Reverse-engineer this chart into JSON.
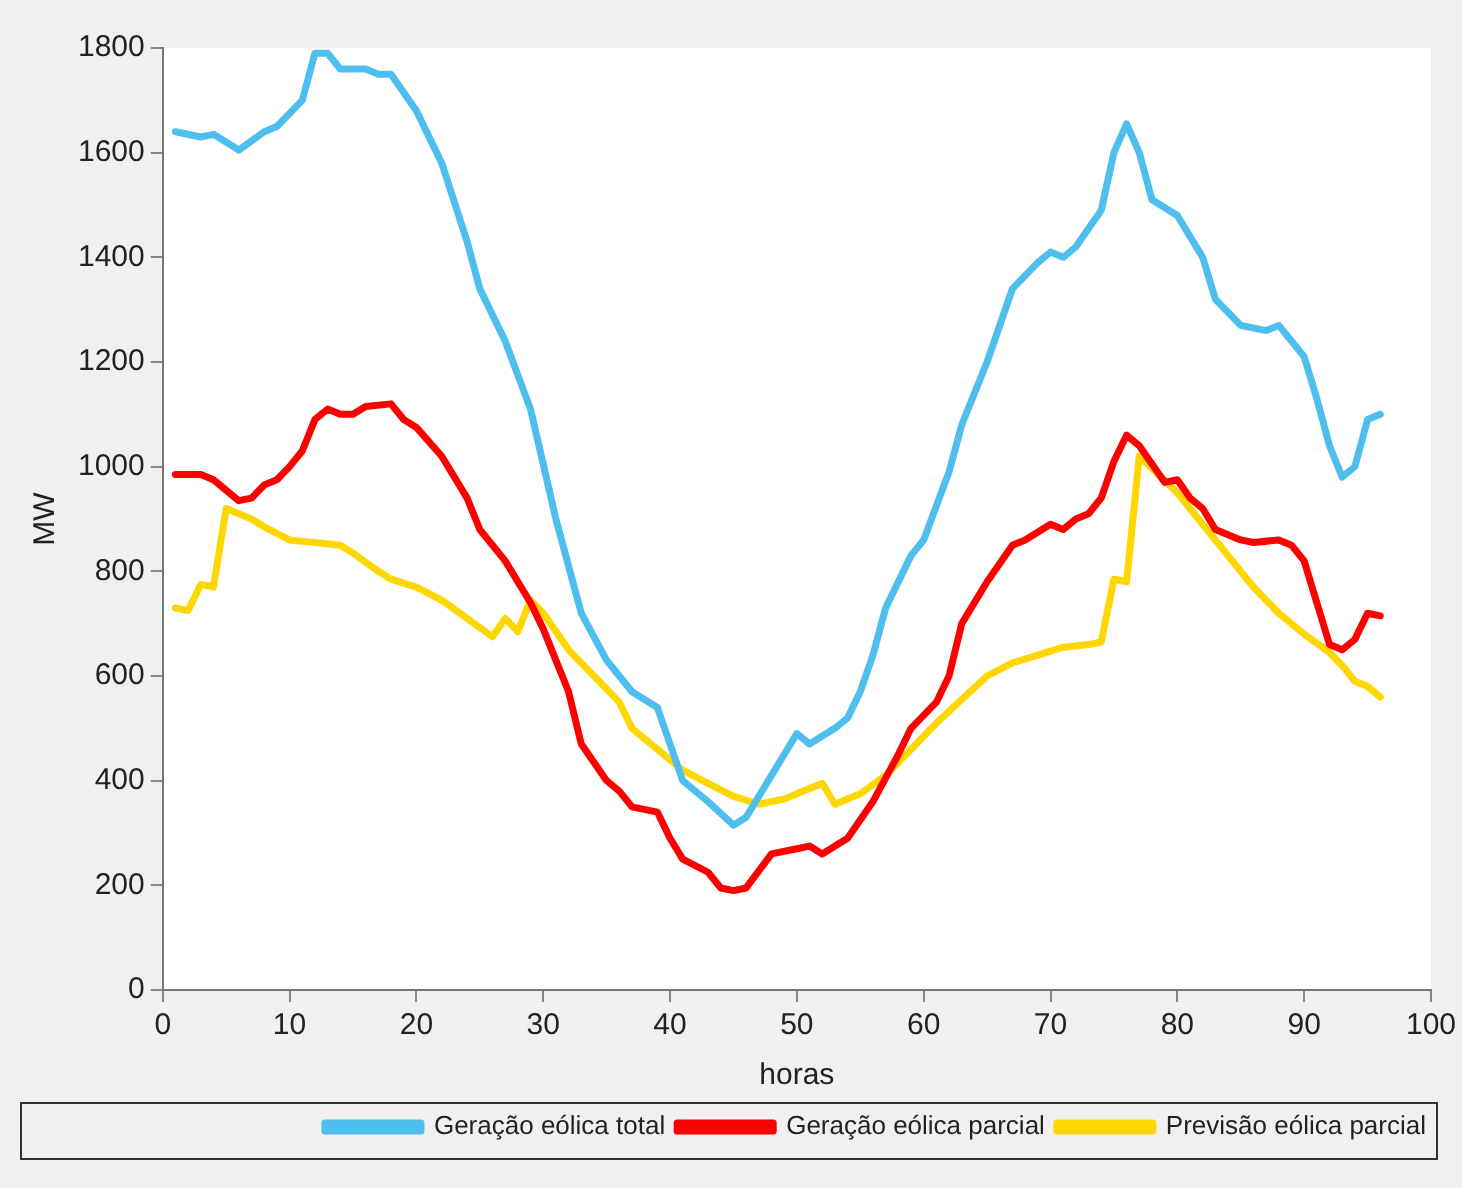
{
  "chart_data": {
    "type": "line",
    "xlabel": "horas",
    "ylabel": "MW",
    "xlim": [
      0,
      100
    ],
    "xticks": [
      0,
      10,
      20,
      30,
      40,
      50,
      60,
      70,
      80,
      90,
      100
    ],
    "ylim": [
      0,
      1800
    ],
    "yticks": [
      0,
      200,
      400,
      600,
      800,
      1000,
      1200,
      1400,
      1600,
      1800
    ],
    "grid": false,
    "legend": "bottom right",
    "marker": "none",
    "line_style": "solid",
    "series": [
      {
        "name": "Geração eólica total",
        "color": "#4dbeee",
        "x": [
          1,
          3,
          4,
          6,
          8,
          9,
          11,
          12,
          13,
          14,
          16,
          17,
          18,
          20,
          22,
          24,
          25,
          27,
          29,
          31,
          33,
          35,
          36,
          37,
          39,
          40,
          41,
          43,
          45,
          46,
          48,
          49,
          50,
          51,
          53,
          54,
          55,
          56,
          57,
          59,
          60,
          62,
          63,
          65,
          67,
          69,
          70,
          71,
          72,
          74,
          75,
          76,
          77,
          78,
          80,
          82,
          83,
          85,
          87,
          88,
          89,
          90,
          91,
          92,
          93,
          94,
          95,
          96
        ],
        "values": [
          1640,
          1630,
          1635,
          1605,
          1640,
          1650,
          1700,
          1790,
          1790,
          1760,
          1760,
          1750,
          1750,
          1680,
          1580,
          1430,
          1340,
          1240,
          1110,
          900,
          720,
          630,
          600,
          570,
          540,
          470,
          400,
          360,
          315,
          330,
          410,
          450,
          490,
          470,
          500,
          520,
          570,
          640,
          730,
          830,
          860,
          990,
          1080,
          1200,
          1340,
          1390,
          1410,
          1400,
          1420,
          1490,
          1600,
          1655,
          1600,
          1510,
          1480,
          1400,
          1320,
          1270,
          1260,
          1270,
          1240,
          1210,
          1130,
          1040,
          980,
          1000,
          1090,
          1100
        ]
      },
      {
        "name": "Geração eólica parcial",
        "color": "#ff0000",
        "x": [
          1,
          3,
          4,
          6,
          7,
          8,
          9,
          10,
          11,
          12,
          13,
          14,
          15,
          16,
          18,
          19,
          20,
          22,
          24,
          25,
          27,
          29,
          30,
          32,
          33,
          35,
          36,
          37,
          39,
          40,
          41,
          43,
          44,
          45,
          46,
          48,
          50,
          51,
          52,
          54,
          56,
          58,
          59,
          61,
          62,
          63,
          65,
          67,
          68,
          70,
          71,
          72,
          73,
          74,
          75,
          76,
          77,
          79,
          80,
          81,
          82,
          83,
          85,
          86,
          88,
          89,
          90,
          91,
          92,
          93,
          94,
          95,
          96
        ],
        "values": [
          985,
          985,
          975,
          935,
          940,
          965,
          975,
          1000,
          1030,
          1090,
          1110,
          1100,
          1100,
          1115,
          1120,
          1090,
          1075,
          1020,
          940,
          880,
          820,
          740,
          690,
          570,
          470,
          400,
          380,
          350,
          340,
          290,
          250,
          225,
          195,
          190,
          195,
          260,
          270,
          275,
          260,
          290,
          360,
          450,
          500,
          550,
          600,
          700,
          780,
          850,
          860,
          890,
          880,
          900,
          910,
          940,
          1010,
          1060,
          1040,
          970,
          975,
          940,
          920,
          880,
          860,
          855,
          860,
          850,
          820,
          740,
          660,
          650,
          670,
          720,
          715
        ]
      },
      {
        "name": "Previsão eólica parcial",
        "color": "#ffd700",
        "x": [
          1,
          2,
          3,
          4,
          5,
          7,
          8,
          10,
          12,
          14,
          15,
          17,
          18,
          20,
          22,
          24,
          26,
          27,
          28,
          29,
          30,
          32,
          34,
          36,
          37,
          39,
          41,
          43,
          45,
          47,
          49,
          50,
          52,
          53,
          55,
          57,
          59,
          61,
          63,
          65,
          67,
          69,
          71,
          73,
          74,
          75,
          76,
          77,
          80,
          82,
          84,
          86,
          88,
          90,
          92,
          93,
          94,
          95,
          96
        ],
        "values": [
          730,
          725,
          775,
          770,
          920,
          900,
          885,
          860,
          855,
          850,
          835,
          800,
          785,
          770,
          745,
          710,
          675,
          710,
          685,
          745,
          720,
          650,
          600,
          550,
          500,
          460,
          420,
          395,
          370,
          355,
          365,
          375,
          395,
          355,
          375,
          410,
          460,
          510,
          555,
          600,
          625,
          640,
          655,
          660,
          665,
          785,
          780,
          1020,
          950,
          890,
          830,
          770,
          720,
          680,
          645,
          620,
          590,
          580,
          560
        ]
      }
    ]
  }
}
